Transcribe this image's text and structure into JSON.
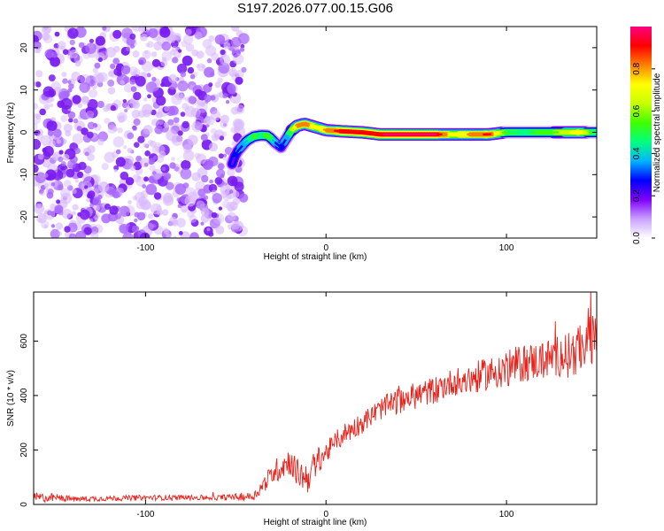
{
  "title": "S197.2026.077.00.15.G06",
  "chart_data": [
    {
      "type": "heatmap",
      "name": "spectrogram",
      "xlabel": "Height of straight line (km)",
      "ylabel": "Frequency (Hz)",
      "xlim": [
        -162,
        150
      ],
      "ylim": [
        -25,
        25
      ],
      "xticks": [
        -100,
        0,
        100
      ],
      "yticks": [
        -20,
        -10,
        0,
        10,
        20
      ],
      "noise_region_x": [
        -162,
        -50
      ],
      "ridge": {
        "x": [
          -52,
          -50,
          -47,
          -44,
          -40,
          -36,
          -32,
          -28,
          -25,
          -22,
          -19,
          -16,
          -12,
          -8,
          -4,
          0,
          10,
          20,
          30,
          40,
          50,
          60,
          70,
          80,
          90,
          100,
          110,
          120,
          130,
          140,
          150
        ],
        "y": [
          -7.5,
          -5.0,
          -3.5,
          -2.0,
          -1.0,
          -0.7,
          -0.8,
          -2.5,
          -3.5,
          -1.5,
          0.5,
          1.5,
          2.0,
          1.5,
          1.0,
          0.5,
          0.2,
          0.0,
          -0.5,
          -0.5,
          -0.5,
          -0.5,
          -0.5,
          -0.5,
          -0.5,
          0.0,
          0.0,
          0.0,
          0.0,
          0.0,
          0.0
        ],
        "amplitude": [
          0.2,
          0.25,
          0.3,
          0.4,
          0.5,
          0.45,
          0.55,
          0.3,
          0.25,
          0.35,
          0.6,
          0.8,
          0.85,
          0.75,
          0.7,
          0.8,
          0.95,
          0.9,
          0.95,
          0.98,
          0.98,
          0.97,
          0.7,
          0.8,
          0.9,
          0.5,
          0.45,
          0.55,
          0.6,
          0.75,
          0.4
        ]
      },
      "colorbar": {
        "label": "Normalized spectral amplitude",
        "ticks": [
          "0.0",
          "0.2",
          "0.4",
          "0.6",
          "0.8"
        ],
        "tick_values": [
          0.0,
          0.2,
          0.4,
          0.6,
          0.8
        ],
        "range": [
          0,
          1
        ],
        "colors": [
          "#ffffff",
          "#c9a0ff",
          "#8000ff",
          "#0000ff",
          "#00b4ff",
          "#00ff80",
          "#40ff00",
          "#c8ff00",
          "#ffff00",
          "#ff8000",
          "#ff0000",
          "#ff0080"
        ]
      }
    },
    {
      "type": "line",
      "name": "snr",
      "xlabel": "Height of straight line (km)",
      "ylabel": "SNR (10 * v/v)",
      "xlim": [
        -162,
        150
      ],
      "ylim": [
        0,
        780
      ],
      "xticks": [
        -100,
        0,
        100
      ],
      "yticks": [
        0,
        200,
        400,
        600
      ],
      "color": "#e8231c",
      "trend": {
        "x": [
          -162,
          -150,
          -140,
          -100,
          -60,
          -40,
          -35,
          -30,
          -25,
          -20,
          -15,
          -10,
          -5,
          0,
          10,
          20,
          30,
          40,
          50,
          60,
          70,
          80,
          90,
          100,
          110,
          120,
          130,
          140,
          145,
          150
        ],
        "y": [
          25,
          25,
          20,
          25,
          25,
          30,
          70,
          110,
          140,
          160,
          110,
          100,
          160,
          190,
          260,
          300,
          350,
          380,
          400,
          420,
          450,
          460,
          480,
          500,
          520,
          530,
          550,
          560,
          620,
          590
        ],
        "noise": [
          20,
          15,
          10,
          10,
          10,
          15,
          30,
          40,
          50,
          50,
          50,
          60,
          50,
          40,
          40,
          40,
          40,
          50,
          50,
          50,
          50,
          60,
          60,
          70,
          70,
          70,
          80,
          90,
          120,
          90
        ]
      }
    }
  ]
}
